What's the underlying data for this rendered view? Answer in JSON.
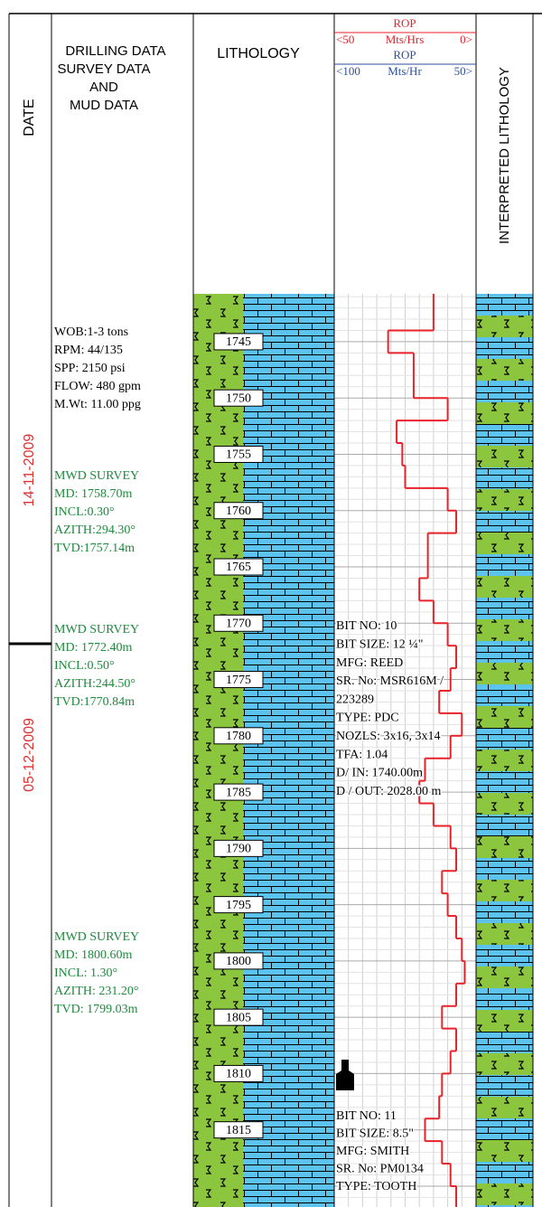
{
  "header": {
    "date": "DATE",
    "drilling": [
      "DRILLING DATA",
      "SURVEY DATA",
      "AND",
      "MUD DATA"
    ],
    "lithology": "LITHOLOGY",
    "rop_red": {
      "title": "ROP",
      "left": {
        "value": 50,
        "label": "<50"
      },
      "unit": "Mts/Hrs",
      "right": {
        "value": 0,
        "label": "0>"
      }
    },
    "rop_blue": {
      "title": "ROP",
      "left": {
        "value": 100,
        "label": "<100"
      },
      "unit": "Mts/Hr",
      "right": {
        "value": 50,
        "label": "50>"
      }
    },
    "interpreted": "INTERPRETED LITHOLOGY"
  },
  "dates": [
    "14-11-2009",
    "05-12-2009"
  ],
  "drilling_data": [
    "WOB:1-3 tons",
    "RPM: 44/135",
    "SPP: 2150 psi",
    "FLOW: 480 gpm",
    "M.Wt: 11.00 ppg"
  ],
  "surveys": [
    [
      "MWD SURVEY",
      "MD: 1758.70m",
      "INCL:0.30°",
      "AZITH:294.30°",
      "TVD:1757.14m"
    ],
    [
      "MWD SURVEY",
      "MD: 1772.40m",
      "INCL:0.50°",
      "AZITH:244.50°",
      "TVD:1770.84m"
    ],
    [
      "MWD SURVEY",
      "MD: 1800.60m",
      "INCL: 1.30°",
      "AZITH: 231.20°",
      "TVD: 1799.03m"
    ]
  ],
  "bits": [
    [
      "BIT NO: 10",
      "BIT SIZE: 12 ¼\"",
      "MFG: REED",
      "SR. No: MSR616M /",
      "223289",
      "TYPE: PDC",
      "NOZLS: 3x16, 3x14",
      "TFA: 1.04",
      "D/ IN: 1740.00m",
      "D / OUT: 2028.00 m"
    ],
    [
      "BIT NO: 11",
      "BIT SIZE:  8.5\"",
      "MFG: SMITH",
      "SR. No: PM0134",
      "TYPE: TOOTH"
    ]
  ],
  "depth": {
    "range": [
      1740.75,
      1821.85
    ],
    "labels": [
      1745,
      1750,
      1755,
      1760,
      1765,
      1770,
      1775,
      1780,
      1785,
      1790,
      1795,
      1800,
      1805,
      1810,
      1815
    ]
  },
  "rop": {
    "color": "#e8222a",
    "depths": [
      1741,
      1743,
      1745,
      1747,
      1749,
      1751,
      1753,
      1755,
      1757,
      1759,
      1761,
      1763,
      1765,
      1767,
      1769,
      1771,
      1773,
      1775,
      1777,
      1779,
      1781,
      1783,
      1785,
      1787,
      1789,
      1791,
      1793,
      1795,
      1797,
      1799,
      1801,
      1803,
      1805,
      1807,
      1809,
      1811,
      1813,
      1815,
      1817,
      1819,
      1821
    ],
    "values": [
      15,
      15,
      31,
      22,
      22,
      10,
      28,
      26,
      25,
      10,
      7,
      17,
      17,
      20,
      15,
      10,
      7,
      9,
      13,
      5,
      9,
      18,
      20,
      15,
      9,
      7,
      12,
      10,
      7,
      5,
      4,
      7,
      12,
      7,
      9,
      12,
      13,
      18,
      12,
      9,
      7
    ]
  }
}
